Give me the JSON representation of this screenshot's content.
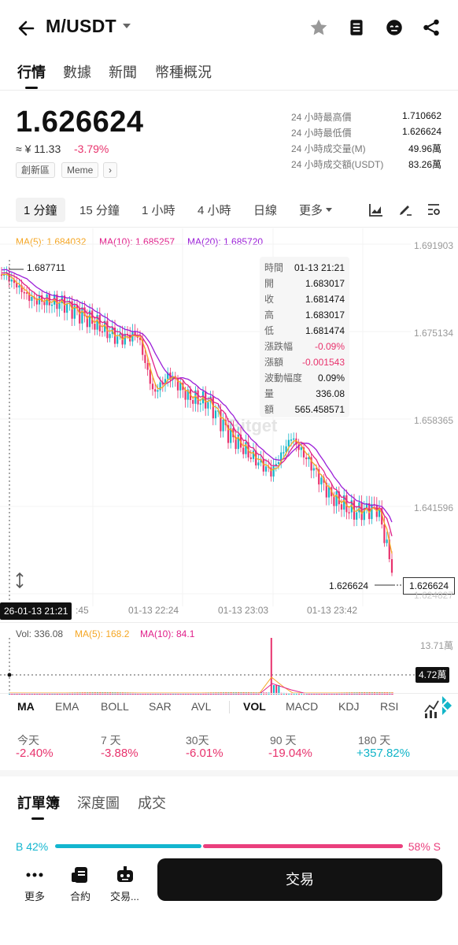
{
  "header": {
    "pair": "M/USDT",
    "tabs": [
      "行情",
      "數據",
      "新聞",
      "幣種概況"
    ]
  },
  "price": {
    "last": "1.626624",
    "approx": "≈ ¥ 11.33",
    "change": "-3.79%",
    "tags": [
      "創新區",
      "Meme",
      "›"
    ],
    "stats": [
      {
        "label": "24 小時最高價",
        "value": "1.710662"
      },
      {
        "label": "24 小時最低價",
        "value": "1.626624"
      },
      {
        "label": "24 小時成交量(M)",
        "value": "49.96萬"
      },
      {
        "label": "24 小時成交額(USDT)",
        "value": "83.26萬"
      }
    ]
  },
  "intervals": [
    "1 分鐘",
    "15 分鐘",
    "1 小時",
    "4 小時",
    "日線",
    "更多"
  ],
  "chart": {
    "ma_legend": {
      "ma5": "MA(5): 1.684032",
      "ma10": "MA(10): 1.685257",
      "ma20": "MA(20): 1.685720"
    },
    "y_labels": [
      "1.691903",
      "1.675134",
      "1.658365",
      "1.641596",
      "1.624827"
    ],
    "x_labels": [
      ":45",
      "01-13 22:24",
      "01-13 23:03",
      "01-13 23:42"
    ],
    "crosshair_time": "26-01-13 21:21",
    "high_marker": "1.687711",
    "low_marker": "1.626624",
    "current_price_tag": "1.626624",
    "watermark": "Bitget",
    "tooltip": [
      {
        "k": "時間",
        "v": "01-13 21:21"
      },
      {
        "k": "開",
        "v": "1.683017"
      },
      {
        "k": "收",
        "v": "1.681474"
      },
      {
        "k": "高",
        "v": "1.683017"
      },
      {
        "k": "低",
        "v": "1.681474"
      },
      {
        "k": "漲跌幅",
        "v": "-0.09%"
      },
      {
        "k": "漲額",
        "v": "-0.001543"
      },
      {
        "k": "波動幅度",
        "v": "0.09%"
      },
      {
        "k": "量",
        "v": "336.08"
      },
      {
        "k": "額",
        "v": "565.458571"
      }
    ],
    "colors": {
      "up": "#12b5c8",
      "down": "#e8336d",
      "ma5": "#f5a623",
      "ma10": "#e0208a",
      "ma20": "#9b1fd8"
    }
  },
  "volume": {
    "vol": "Vol: 336.08",
    "ma5": "MA(5): 168.2",
    "ma10": "MA(10): 84.1",
    "max_label": "13.71萬",
    "cross_label": "4.72萬"
  },
  "indicators": [
    "MA",
    "EMA",
    "BOLL",
    "SAR",
    "AVL",
    "VOL",
    "MACD",
    "KDJ",
    "RSI"
  ],
  "performance": [
    {
      "label": "今天",
      "value": "-2.40%"
    },
    {
      "label": "7 天",
      "value": "-3.88%"
    },
    {
      "label": "30天",
      "value": "-6.01%"
    },
    {
      "label": "90 天",
      "value": "-19.04%"
    },
    {
      "label": "180 天",
      "value": "+357.82%"
    }
  ],
  "orderbook": {
    "tabs": [
      "訂單簿",
      "深度圖",
      "成交"
    ],
    "buy": "B 42%",
    "sell": "58% S",
    "buy_ratio": 0.42
  },
  "bottom": {
    "items": [
      "更多",
      "合約",
      "交易..."
    ],
    "trade": "交易"
  }
}
